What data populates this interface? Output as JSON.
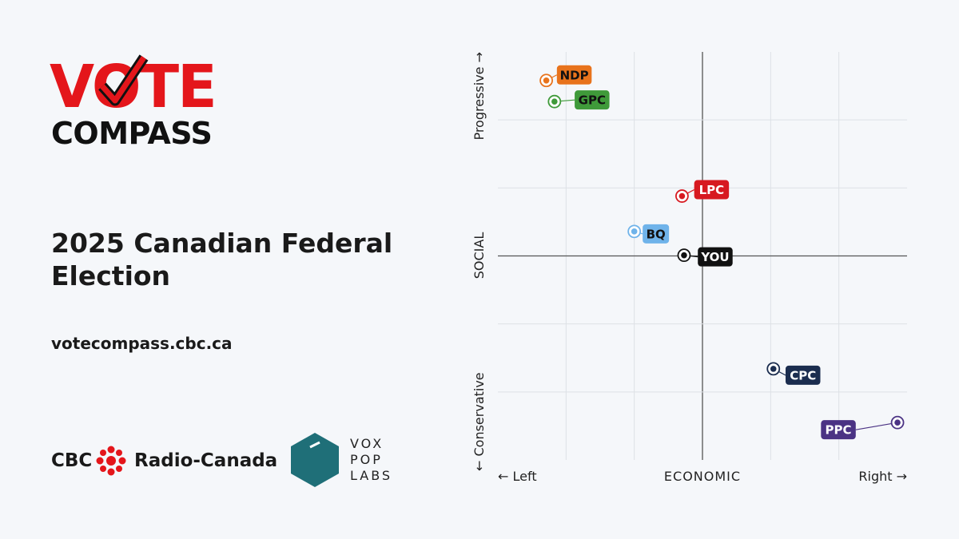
{
  "logo": {
    "line1": "VOTE",
    "line2": "COMPASS"
  },
  "title": "2025 Canadian Federal Election",
  "url": "votecompass.cbc.ca",
  "partners": {
    "cbc": "CBC",
    "radio_canada": "Radio-Canada",
    "vox": [
      "VOX",
      "POP",
      "LABS"
    ]
  },
  "chart_data": {
    "type": "scatter",
    "x_label_left": "← Left",
    "x_label": "ECONOMIC",
    "x_label_right": "Right →",
    "y_label_top": "Progressive →",
    "y_label": "SOCIAL",
    "y_label_bottom": "← Conservative",
    "xlim": [
      -3,
      3
    ],
    "ylim": [
      -3,
      3
    ],
    "xticks": [
      -2,
      -1,
      0,
      1,
      2
    ],
    "yticks": [
      -2,
      -1,
      0,
      1,
      2
    ],
    "grid": true,
    "series": [
      {
        "name": "NDP",
        "color": "#e8731c",
        "label_color": "#111111",
        "x": [
          -2.29
        ],
        "values": [
          2.58
        ]
      },
      {
        "name": "GPC",
        "color": "#3f9a3a",
        "label_color": "#111111",
        "x": [
          -2.17
        ],
        "values": [
          2.27
        ]
      },
      {
        "name": "LPC",
        "color": "#d71920",
        "label_color": "#ffffff",
        "x": [
          -0.3
        ],
        "values": [
          0.88
        ]
      },
      {
        "name": "BQ",
        "color": "#6fb3ea",
        "label_color": "#111111",
        "x": [
          -1.0
        ],
        "values": [
          0.36
        ]
      },
      {
        "name": "YOU",
        "color": "#111111",
        "label_color": "#ffffff",
        "x": [
          -0.27
        ],
        "values": [
          0.01
        ]
      },
      {
        "name": "CPC",
        "color": "#1b2d4f",
        "label_color": "#ffffff",
        "x": [
          1.04
        ],
        "values": [
          -1.66
        ]
      },
      {
        "name": "PPC",
        "color": "#4b3384",
        "label_color": "#ffffff",
        "x": [
          2.86
        ],
        "values": [
          -2.45
        ]
      }
    ]
  }
}
